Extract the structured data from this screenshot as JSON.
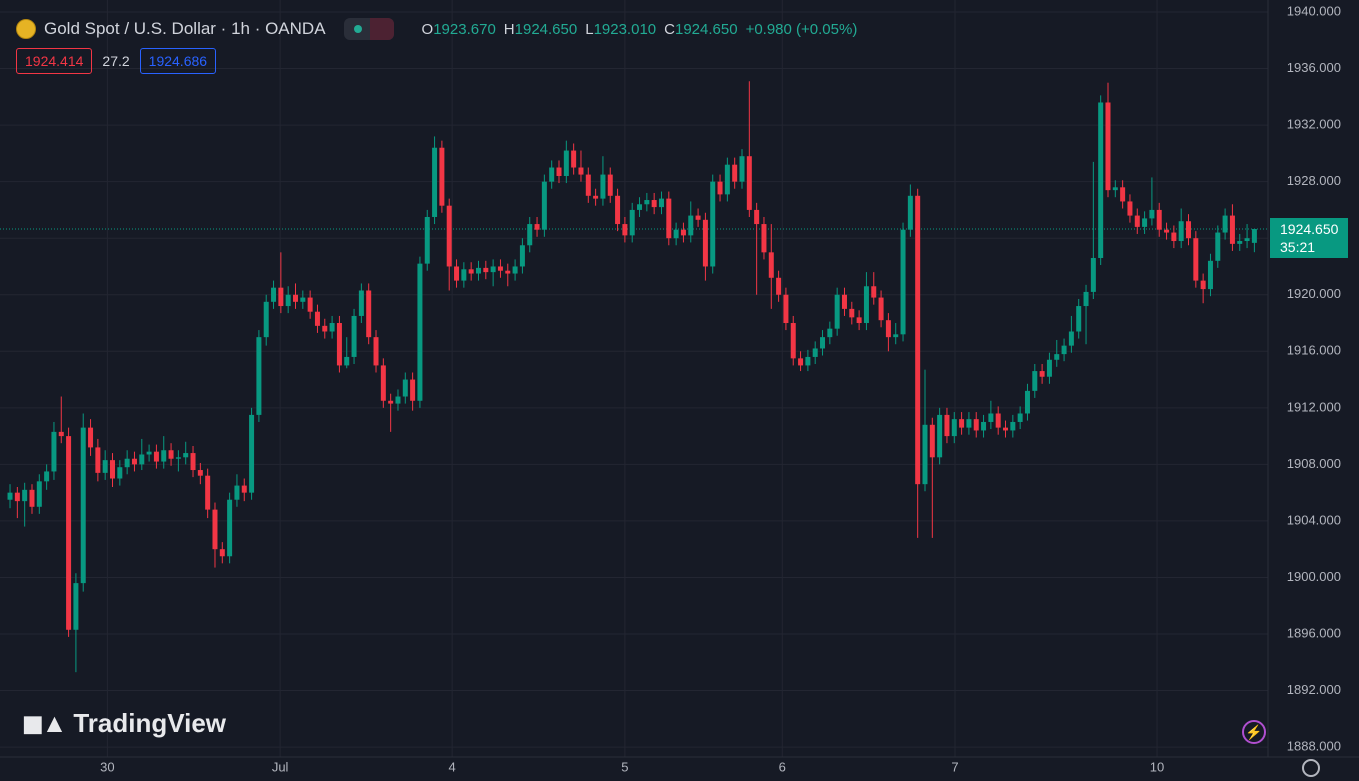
{
  "header": {
    "title": "Gold Spot / U.S. Dollar · 1h · OANDA",
    "ohlc": [
      {
        "key": "O",
        "value": "1923.670"
      },
      {
        "key": "H",
        "value": "1924.650"
      },
      {
        "key": "L",
        "value": "1923.010"
      },
      {
        "key": "C",
        "value": "1924.650"
      }
    ],
    "change": "+0.980 (+0.05%)",
    "bid": "1924.414",
    "spread": "27.2",
    "ask": "1924.686",
    "watermark": "TradingView"
  },
  "chart_data": {
    "type": "candlestick",
    "up_color": "#089981",
    "down_color": "#f23645",
    "grid": true,
    "last_price": {
      "value": 1924.65,
      "label": "1924.650"
    },
    "countdown": "35:21",
    "ylim": [
      1887.3,
      1940.85
    ],
    "yticks": [
      {
        "value": 1888,
        "label": "1888.000"
      },
      {
        "value": 1892,
        "label": "1892.000"
      },
      {
        "value": 1896,
        "label": "1896.000"
      },
      {
        "value": 1900,
        "label": "1900.000"
      },
      {
        "value": 1904,
        "label": "1904.000"
      },
      {
        "value": 1908,
        "label": "1908.000"
      },
      {
        "value": 1912,
        "label": "1912.000"
      },
      {
        "value": 1916,
        "label": "1916.000"
      },
      {
        "value": 1920,
        "label": "1920.000"
      },
      {
        "value": 1924,
        "label": "1924.000"
      },
      {
        "value": 1928,
        "label": "1928.000"
      },
      {
        "value": 1932,
        "label": "1932.000"
      },
      {
        "value": 1936,
        "label": "1936.000"
      },
      {
        "value": 1940,
        "label": "1940.000"
      }
    ],
    "xlim": [
      -1.37,
      171.86
    ],
    "xticks": [
      {
        "value": 13.3,
        "label": "30"
      },
      {
        "value": 36.9,
        "label": "Jul"
      },
      {
        "value": 60.4,
        "label": "4"
      },
      {
        "value": 84.0,
        "label": "5"
      },
      {
        "value": 105.5,
        "label": "6"
      },
      {
        "value": 129.1,
        "label": "7"
      },
      {
        "value": 156.7,
        "label": "10"
      }
    ],
    "ohlc": [
      [
        1905.5,
        1906.6,
        1904.9,
        1906.0
      ],
      [
        1906.0,
        1906.4,
        1904.2,
        1905.4
      ],
      [
        1905.4,
        1906.7,
        1903.6,
        1906.2
      ],
      [
        1906.2,
        1906.6,
        1904.5,
        1905.0
      ],
      [
        1905.0,
        1907.3,
        1904.5,
        1906.8
      ],
      [
        1906.8,
        1908.0,
        1906.2,
        1907.5
      ],
      [
        1907.5,
        1911.0,
        1906.9,
        1910.3
      ],
      [
        1910.3,
        1912.8,
        1909.5,
        1910.0
      ],
      [
        1910.0,
        1910.6,
        1895.8,
        1896.3
      ],
      [
        1896.3,
        1900.3,
        1893.3,
        1899.6
      ],
      [
        1899.6,
        1911.6,
        1899.0,
        1910.6
      ],
      [
        1910.6,
        1911.2,
        1908.6,
        1909.2
      ],
      [
        1909.2,
        1909.8,
        1906.8,
        1907.4
      ],
      [
        1907.4,
        1909.0,
        1906.9,
        1908.3
      ],
      [
        1908.3,
        1908.8,
        1906.4,
        1907.0
      ],
      [
        1907.0,
        1908.3,
        1906.5,
        1907.8
      ],
      [
        1907.8,
        1909.0,
        1907.3,
        1908.4
      ],
      [
        1908.4,
        1908.9,
        1907.5,
        1908.0
      ],
      [
        1908.0,
        1909.8,
        1907.6,
        1908.7
      ],
      [
        1908.7,
        1909.4,
        1908.2,
        1908.9
      ],
      [
        1908.9,
        1909.4,
        1907.7,
        1908.2
      ],
      [
        1908.2,
        1910.0,
        1907.7,
        1909.0
      ],
      [
        1909.0,
        1909.5,
        1907.9,
        1908.4
      ],
      [
        1908.4,
        1909.0,
        1907.5,
        1908.5
      ],
      [
        1908.5,
        1909.6,
        1908.0,
        1908.8
      ],
      [
        1908.8,
        1909.3,
        1907.1,
        1907.6
      ],
      [
        1907.6,
        1908.1,
        1906.6,
        1907.2
      ],
      [
        1907.2,
        1907.7,
        1904.2,
        1904.8
      ],
      [
        1904.8,
        1905.3,
        1900.7,
        1902.0
      ],
      [
        1902.0,
        1902.5,
        1901.0,
        1901.5
      ],
      [
        1901.5,
        1906.0,
        1901.0,
        1905.5
      ],
      [
        1905.5,
        1907.3,
        1905.0,
        1906.5
      ],
      [
        1906.5,
        1907.0,
        1905.4,
        1906.0
      ],
      [
        1906.0,
        1912.0,
        1905.5,
        1911.5
      ],
      [
        1911.5,
        1917.5,
        1911.0,
        1917.0
      ],
      [
        1917.0,
        1920.0,
        1916.4,
        1919.5
      ],
      [
        1919.5,
        1921.0,
        1919.0,
        1920.5
      ],
      [
        1920.5,
        1923.0,
        1918.7,
        1919.2
      ],
      [
        1919.2,
        1920.6,
        1918.7,
        1920.0
      ],
      [
        1920.0,
        1920.8,
        1919.0,
        1919.5
      ],
      [
        1919.5,
        1920.3,
        1919.0,
        1919.8
      ],
      [
        1919.8,
        1920.3,
        1918.3,
        1918.8
      ],
      [
        1918.8,
        1919.3,
        1917.3,
        1917.8
      ],
      [
        1917.8,
        1918.3,
        1916.9,
        1917.4
      ],
      [
        1917.4,
        1918.5,
        1916.9,
        1918.0
      ],
      [
        1918.0,
        1918.5,
        1914.5,
        1915.0
      ],
      [
        1915.0,
        1917.0,
        1914.8,
        1915.6
      ],
      [
        1915.6,
        1919.0,
        1915.1,
        1918.5
      ],
      [
        1918.5,
        1920.8,
        1918.0,
        1920.3
      ],
      [
        1920.3,
        1920.8,
        1916.5,
        1917.0
      ],
      [
        1917.0,
        1917.5,
        1914.5,
        1915.0
      ],
      [
        1915.0,
        1915.5,
        1912.0,
        1912.5
      ],
      [
        1912.5,
        1913.0,
        1910.3,
        1912.3
      ],
      [
        1912.3,
        1913.3,
        1911.8,
        1912.8
      ],
      [
        1912.8,
        1914.5,
        1912.3,
        1914.0
      ],
      [
        1914.0,
        1914.5,
        1911.8,
        1912.5
      ],
      [
        1912.5,
        1922.7,
        1912.0,
        1922.2
      ],
      [
        1922.2,
        1926.0,
        1921.7,
        1925.5
      ],
      [
        1925.5,
        1931.2,
        1925.0,
        1930.4
      ],
      [
        1930.4,
        1930.9,
        1925.8,
        1926.3
      ],
      [
        1926.3,
        1926.8,
        1920.3,
        1922.0
      ],
      [
        1922.0,
        1922.5,
        1920.5,
        1921.0
      ],
      [
        1921.0,
        1922.3,
        1920.5,
        1921.8
      ],
      [
        1921.8,
        1922.3,
        1921.0,
        1921.5
      ],
      [
        1921.5,
        1922.4,
        1921.0,
        1921.9
      ],
      [
        1921.9,
        1922.4,
        1921.1,
        1921.6
      ],
      [
        1921.6,
        1922.5,
        1920.6,
        1922.0
      ],
      [
        1922.0,
        1922.5,
        1921.2,
        1921.7
      ],
      [
        1921.7,
        1922.2,
        1920.6,
        1921.5
      ],
      [
        1921.5,
        1922.5,
        1921.0,
        1922.0
      ],
      [
        1922.0,
        1924.0,
        1921.5,
        1923.5
      ],
      [
        1923.5,
        1925.5,
        1923.0,
        1925.0
      ],
      [
        1925.0,
        1925.5,
        1924.1,
        1924.6
      ],
      [
        1924.6,
        1928.5,
        1924.1,
        1928.0
      ],
      [
        1928.0,
        1929.5,
        1927.5,
        1929.0
      ],
      [
        1929.0,
        1929.5,
        1927.9,
        1928.4
      ],
      [
        1928.4,
        1930.9,
        1927.9,
        1930.2
      ],
      [
        1930.2,
        1930.7,
        1928.5,
        1929.0
      ],
      [
        1929.0,
        1930.2,
        1928.0,
        1928.5
      ],
      [
        1928.5,
        1929.0,
        1926.5,
        1927.0
      ],
      [
        1927.0,
        1927.5,
        1926.3,
        1926.8
      ],
      [
        1926.8,
        1929.8,
        1926.3,
        1928.5
      ],
      [
        1928.5,
        1929.0,
        1926.5,
        1927.0
      ],
      [
        1927.0,
        1927.5,
        1924.5,
        1925.0
      ],
      [
        1925.0,
        1925.5,
        1923.7,
        1924.2
      ],
      [
        1924.2,
        1926.5,
        1923.7,
        1926.0
      ],
      [
        1926.0,
        1926.9,
        1925.5,
        1926.4
      ],
      [
        1926.4,
        1927.2,
        1925.9,
        1926.7
      ],
      [
        1926.7,
        1927.2,
        1925.7,
        1926.2
      ],
      [
        1926.2,
        1927.3,
        1925.7,
        1926.8
      ],
      [
        1926.8,
        1927.3,
        1923.5,
        1924.0
      ],
      [
        1924.0,
        1925.1,
        1923.5,
        1924.6
      ],
      [
        1924.6,
        1925.1,
        1923.7,
        1924.2
      ],
      [
        1924.2,
        1926.6,
        1923.7,
        1925.6
      ],
      [
        1925.6,
        1926.1,
        1924.8,
        1925.3
      ],
      [
        1925.3,
        1925.8,
        1921.0,
        1922.0
      ],
      [
        1922.0,
        1928.5,
        1921.5,
        1928.0
      ],
      [
        1928.0,
        1928.5,
        1926.6,
        1927.1
      ],
      [
        1927.1,
        1929.7,
        1926.6,
        1929.2
      ],
      [
        1929.2,
        1929.7,
        1927.5,
        1928.0
      ],
      [
        1928.0,
        1930.3,
        1927.5,
        1929.8
      ],
      [
        1929.8,
        1935.1,
        1925.5,
        1926.0
      ],
      [
        1926.0,
        1926.5,
        1920.0,
        1925.0
      ],
      [
        1925.0,
        1925.5,
        1922.5,
        1923.0
      ],
      [
        1923.0,
        1925.0,
        1919.0,
        1921.2
      ],
      [
        1921.2,
        1921.7,
        1919.5,
        1920.0
      ],
      [
        1920.0,
        1920.5,
        1917.5,
        1918.0
      ],
      [
        1918.0,
        1918.5,
        1915.0,
        1915.5
      ],
      [
        1915.5,
        1916.0,
        1914.6,
        1915.0
      ],
      [
        1915.0,
        1916.1,
        1914.6,
        1915.6
      ],
      [
        1915.6,
        1916.7,
        1915.1,
        1916.2
      ],
      [
        1916.2,
        1917.5,
        1915.7,
        1917.0
      ],
      [
        1917.0,
        1918.1,
        1916.5,
        1917.6
      ],
      [
        1917.6,
        1920.5,
        1917.1,
        1920.0
      ],
      [
        1920.0,
        1920.5,
        1918.5,
        1919.0
      ],
      [
        1919.0,
        1919.5,
        1917.9,
        1918.4
      ],
      [
        1918.4,
        1918.9,
        1917.5,
        1918.0
      ],
      [
        1918.0,
        1921.6,
        1917.5,
        1920.6
      ],
      [
        1920.6,
        1921.6,
        1919.3,
        1919.8
      ],
      [
        1919.8,
        1920.3,
        1917.7,
        1918.2
      ],
      [
        1918.2,
        1918.7,
        1916.0,
        1917.0
      ],
      [
        1917.0,
        1918.0,
        1916.5,
        1917.2
      ],
      [
        1917.2,
        1925.1,
        1916.7,
        1924.6
      ],
      [
        1924.6,
        1927.8,
        1924.1,
        1927.0
      ],
      [
        1927.0,
        1927.5,
        1902.8,
        1906.6
      ],
      [
        1906.6,
        1914.7,
        1906.1,
        1910.8
      ],
      [
        1910.8,
        1911.3,
        1902.8,
        1908.5
      ],
      [
        1908.5,
        1912.0,
        1908.0,
        1911.5
      ],
      [
        1911.5,
        1912.0,
        1909.5,
        1910.0
      ],
      [
        1910.0,
        1911.7,
        1909.5,
        1911.2
      ],
      [
        1911.2,
        1911.7,
        1910.1,
        1910.6
      ],
      [
        1910.6,
        1911.7,
        1910.1,
        1911.2
      ],
      [
        1911.2,
        1911.7,
        1909.9,
        1910.4
      ],
      [
        1910.4,
        1911.5,
        1909.9,
        1911.0
      ],
      [
        1911.0,
        1912.5,
        1910.5,
        1911.6
      ],
      [
        1911.6,
        1912.1,
        1910.1,
        1910.6
      ],
      [
        1910.6,
        1911.1,
        1909.9,
        1910.4
      ],
      [
        1910.4,
        1911.5,
        1909.9,
        1911.0
      ],
      [
        1911.0,
        1912.1,
        1910.5,
        1911.6
      ],
      [
        1911.6,
        1913.7,
        1911.1,
        1913.2
      ],
      [
        1913.2,
        1915.1,
        1912.7,
        1914.6
      ],
      [
        1914.6,
        1915.1,
        1913.7,
        1914.2
      ],
      [
        1914.2,
        1915.9,
        1913.7,
        1915.4
      ],
      [
        1915.4,
        1916.8,
        1914.9,
        1915.8
      ],
      [
        1915.8,
        1916.9,
        1915.3,
        1916.4
      ],
      [
        1916.4,
        1918.5,
        1915.9,
        1917.4
      ],
      [
        1917.4,
        1919.7,
        1916.9,
        1919.2
      ],
      [
        1919.2,
        1920.7,
        1916.5,
        1920.2
      ],
      [
        1920.2,
        1929.4,
        1919.7,
        1922.6
      ],
      [
        1922.6,
        1934.1,
        1922.1,
        1933.6
      ],
      [
        1933.6,
        1935.0,
        1926.9,
        1927.4
      ],
      [
        1927.4,
        1928.1,
        1926.9,
        1927.6
      ],
      [
        1927.6,
        1928.1,
        1926.1,
        1926.6
      ],
      [
        1926.6,
        1927.1,
        1925.1,
        1925.6
      ],
      [
        1925.6,
        1926.1,
        1924.3,
        1924.8
      ],
      [
        1924.8,
        1925.9,
        1924.3,
        1925.4
      ],
      [
        1925.4,
        1928.3,
        1924.9,
        1926.0
      ],
      [
        1926.0,
        1926.5,
        1924.1,
        1924.6
      ],
      [
        1924.6,
        1925.1,
        1923.9,
        1924.4
      ],
      [
        1924.4,
        1924.9,
        1923.3,
        1923.8
      ],
      [
        1923.8,
        1926.1,
        1923.3,
        1925.2
      ],
      [
        1925.2,
        1925.7,
        1923.5,
        1924.0
      ],
      [
        1924.0,
        1924.5,
        1920.5,
        1921.0
      ],
      [
        1921.0,
        1921.5,
        1919.4,
        1920.4
      ],
      [
        1920.4,
        1922.9,
        1919.9,
        1922.4
      ],
      [
        1922.4,
        1924.9,
        1921.9,
        1924.4
      ],
      [
        1924.4,
        1926.1,
        1923.9,
        1925.6
      ],
      [
        1925.6,
        1926.4,
        1923.1,
        1923.6
      ],
      [
        1923.6,
        1924.3,
        1923.1,
        1923.8
      ],
      [
        1923.8,
        1925.0,
        1923.3,
        1924.0
      ],
      [
        1923.67,
        1924.65,
        1923.01,
        1924.65
      ]
    ]
  }
}
